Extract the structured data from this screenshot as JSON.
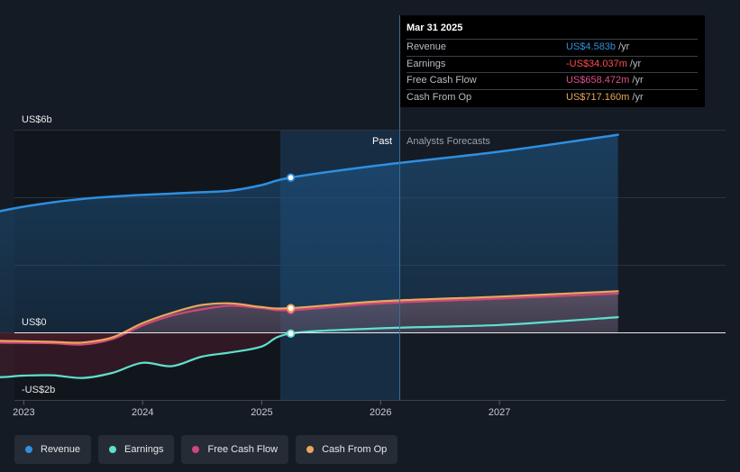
{
  "chart_data": {
    "type": "area",
    "x_unit": "date",
    "y_unit": "US$ billions",
    "ylim": [
      -2,
      6
    ],
    "x_ticks": [
      "2023",
      "2024",
      "2025",
      "2026",
      "2027"
    ],
    "y_labels": [
      {
        "value": 6,
        "text": "US$6b"
      },
      {
        "value": 0,
        "text": "US$0"
      },
      {
        "value": -2,
        "text": "-US$2b"
      }
    ],
    "past_label": "Past",
    "forecast_label": "Analysts Forecasts",
    "divider_date": "2025-03-31",
    "grid": true,
    "series": [
      {
        "name": "Revenue",
        "color": "#2f8fe0",
        "points": [
          [
            "2022-03-31",
            3.13
          ],
          [
            "2022-06-30",
            3.35
          ],
          [
            "2022-09-30",
            3.55
          ],
          [
            "2022-12-31",
            3.72
          ],
          [
            "2023-03-31",
            3.85
          ],
          [
            "2023-06-30",
            3.95
          ],
          [
            "2023-09-30",
            4.02
          ],
          [
            "2023-12-31",
            4.07
          ],
          [
            "2024-03-31",
            4.11
          ],
          [
            "2024-06-30",
            4.15
          ],
          [
            "2024-09-30",
            4.2
          ],
          [
            "2024-12-31",
            4.36
          ],
          [
            "2025-03-31",
            4.583
          ],
          [
            "2025-12-31",
            4.95
          ],
          [
            "2026-12-31",
            5.35
          ],
          [
            "2027-12-31",
            5.85
          ]
        ]
      },
      {
        "name": "Earnings",
        "color": "#5fe0cf",
        "points": [
          [
            "2022-03-31",
            -0.97
          ],
          [
            "2022-06-30",
            -1.1
          ],
          [
            "2022-09-30",
            -1.32
          ],
          [
            "2022-12-31",
            -1.28
          ],
          [
            "2023-03-31",
            -1.27
          ],
          [
            "2023-06-30",
            -1.35
          ],
          [
            "2023-09-30",
            -1.2
          ],
          [
            "2023-12-31",
            -0.9
          ],
          [
            "2024-03-31",
            -1.0
          ],
          [
            "2024-06-30",
            -0.72
          ],
          [
            "2024-09-30",
            -0.59
          ],
          [
            "2024-12-31",
            -0.42
          ],
          [
            "2025-03-31",
            -0.034
          ],
          [
            "2025-12-31",
            0.12
          ],
          [
            "2026-12-31",
            0.22
          ],
          [
            "2027-12-31",
            0.45
          ]
        ]
      },
      {
        "name": "Free Cash Flow",
        "color": "#d0467a",
        "points": [
          [
            "2022-03-31",
            -0.18
          ],
          [
            "2022-06-30",
            -0.25
          ],
          [
            "2022-09-30",
            -0.3
          ],
          [
            "2022-12-31",
            -0.31
          ],
          [
            "2023-03-31",
            -0.32
          ],
          [
            "2023-06-30",
            -0.36
          ],
          [
            "2023-09-30",
            -0.2
          ],
          [
            "2023-12-31",
            0.2
          ],
          [
            "2024-03-31",
            0.5
          ],
          [
            "2024-06-30",
            0.68
          ],
          [
            "2024-09-30",
            0.79
          ],
          [
            "2024-12-31",
            0.72
          ],
          [
            "2025-03-31",
            0.658
          ],
          [
            "2025-12-31",
            0.86
          ],
          [
            "2026-12-31",
            1.0
          ],
          [
            "2027-12-31",
            1.15
          ]
        ]
      },
      {
        "name": "Cash From Op",
        "color": "#e8a85c",
        "points": [
          [
            "2022-03-31",
            -0.08
          ],
          [
            "2022-06-30",
            -0.17
          ],
          [
            "2022-09-30",
            -0.24
          ],
          [
            "2022-12-31",
            -0.26
          ],
          [
            "2023-03-31",
            -0.28
          ],
          [
            "2023-06-30",
            -0.3
          ],
          [
            "2023-09-30",
            -0.15
          ],
          [
            "2023-12-31",
            0.27
          ],
          [
            "2024-03-31",
            0.58
          ],
          [
            "2024-06-30",
            0.81
          ],
          [
            "2024-09-30",
            0.86
          ],
          [
            "2024-12-31",
            0.75
          ],
          [
            "2025-03-31",
            0.717
          ],
          [
            "2025-12-31",
            0.92
          ],
          [
            "2026-12-31",
            1.06
          ],
          [
            "2027-12-31",
            1.22
          ]
        ]
      }
    ],
    "highlight_date": "2025-03-31"
  },
  "tooltip": {
    "date": "Mar 31 2025",
    "rows": [
      {
        "name": "Revenue",
        "value": "US$4.583b",
        "unit": "/yr",
        "color": "#2f8fe0"
      },
      {
        "name": "Earnings",
        "value": "-US$34.037m",
        "unit": "/yr",
        "color": "#ff4d4d"
      },
      {
        "name": "Free Cash Flow",
        "value": "US$658.472m",
        "unit": "/yr",
        "color": "#e0508a"
      },
      {
        "name": "Cash From Op",
        "value": "US$717.160m",
        "unit": "/yr",
        "color": "#e8a85c"
      }
    ]
  },
  "legend": [
    {
      "label": "Revenue",
      "color": "#2f8fe0"
    },
    {
      "label": "Earnings",
      "color": "#5fe0cf"
    },
    {
      "label": "Free Cash Flow",
      "color": "#d0467a"
    },
    {
      "label": "Cash From Op",
      "color": "#e8a85c"
    }
  ]
}
